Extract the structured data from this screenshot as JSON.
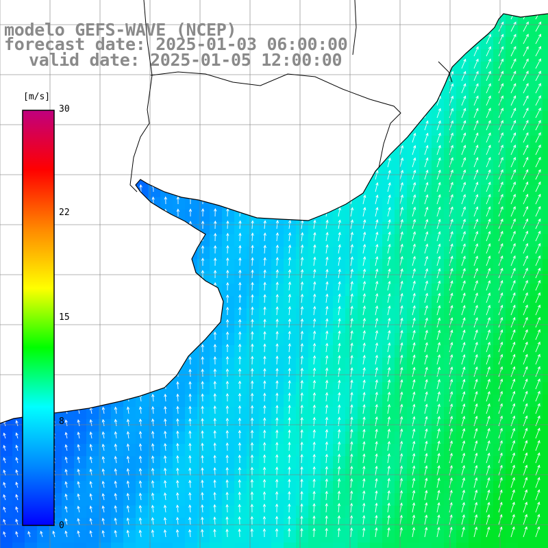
{
  "title": {
    "line1": "modelo GEFS-WAVE (NCEP)",
    "line2": "forecast date: 2025-01-03 06:00:00",
    "line3": "valid date: 2025-01-05 12:00:00"
  },
  "colorbar": {
    "unit": "[m/s]",
    "ticks": [
      "30",
      "22",
      "15",
      "8",
      "0"
    ],
    "colors": [
      "#0000ff",
      "#0088ff",
      "#00ffff",
      "#00ff00",
      "#ffff00",
      "#ff8800",
      "#ff0000",
      "#c0007f"
    ]
  },
  "map": {
    "land_color": "#ffffff",
    "coastline_color": "#000000",
    "grid_color": "#808080",
    "vector_color": "#ffffff",
    "grid": "on"
  }
}
